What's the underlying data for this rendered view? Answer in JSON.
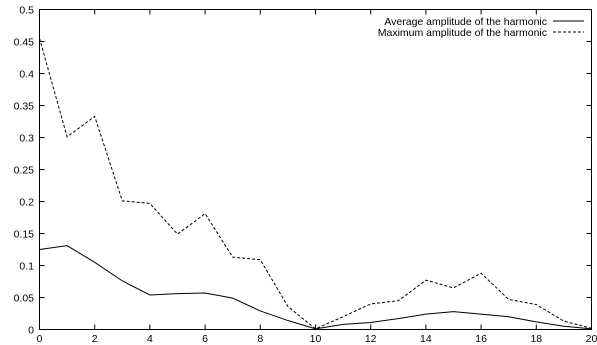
{
  "chart_data": {
    "type": "line",
    "title": "",
    "xlabel": "",
    "ylabel": "",
    "xlim": [
      0,
      20
    ],
    "ylim": [
      0,
      0.5
    ],
    "grid": false,
    "legend_position": "top-right",
    "x_ticks": [
      "0",
      "2",
      "4",
      "6",
      "8",
      "10",
      "12",
      "14",
      "16",
      "18",
      "20"
    ],
    "y_ticks": [
      "0",
      "0.05",
      "0.1",
      "0.15",
      "0.2",
      "0.25",
      "0.3",
      "0.35",
      "0.4",
      "0.45",
      "0.5"
    ],
    "x": [
      0,
      1,
      2,
      3,
      4,
      5,
      6,
      7,
      8,
      9,
      10,
      11,
      12,
      13,
      14,
      15,
      16,
      17,
      18,
      19,
      20
    ],
    "series": [
      {
        "name": "Average amplitude of the harmonic",
        "style": "solid",
        "values": [
          0.125,
          0.131,
          0.105,
          0.076,
          0.054,
          0.056,
          0.057,
          0.049,
          0.029,
          0.014,
          0.001,
          0.008,
          0.011,
          0.017,
          0.024,
          0.028,
          0.024,
          0.02,
          0.012,
          0.005,
          0.001
        ]
      },
      {
        "name": "Maximum amplitude of the harmonic",
        "style": "dashed",
        "values": [
          0.455,
          0.301,
          0.333,
          0.201,
          0.197,
          0.149,
          0.181,
          0.113,
          0.109,
          0.036,
          0.001,
          0.02,
          0.04,
          0.045,
          0.077,
          0.065,
          0.088,
          0.047,
          0.039,
          0.013,
          0.002
        ]
      }
    ]
  }
}
